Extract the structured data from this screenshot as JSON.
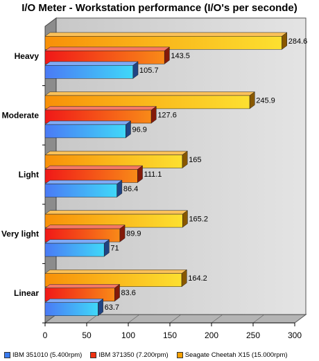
{
  "chart_data": {
    "type": "bar",
    "orientation": "horizontal",
    "title": "I/O Meter - Workstation performance (I/O's per seconde)",
    "categories": [
      "Heavy",
      "Moderate",
      "Light",
      "Very light",
      "Linear"
    ],
    "series": [
      {
        "name": "IBM 351010 (5.400rpm)",
        "color": "#3a7bef",
        "values": [
          105.7,
          96.9,
          86.4,
          71,
          63.7
        ]
      },
      {
        "name": "IBM 371350 (7.200rpm)",
        "color": "#f03010",
        "values": [
          143.5,
          127.6,
          111.1,
          89.9,
          83.6
        ]
      },
      {
        "name": "Seagate Cheetah X15 (15.000rpm)",
        "color": "#f8a000",
        "values": [
          284.6,
          245.9,
          165,
          165.2,
          164.2
        ]
      }
    ],
    "xlim": [
      0,
      300
    ],
    "xticks": [
      0,
      50,
      100,
      150,
      200,
      250,
      300
    ],
    "xlabel": "",
    "ylabel": "",
    "grid": false,
    "legend_position": "bottom"
  }
}
